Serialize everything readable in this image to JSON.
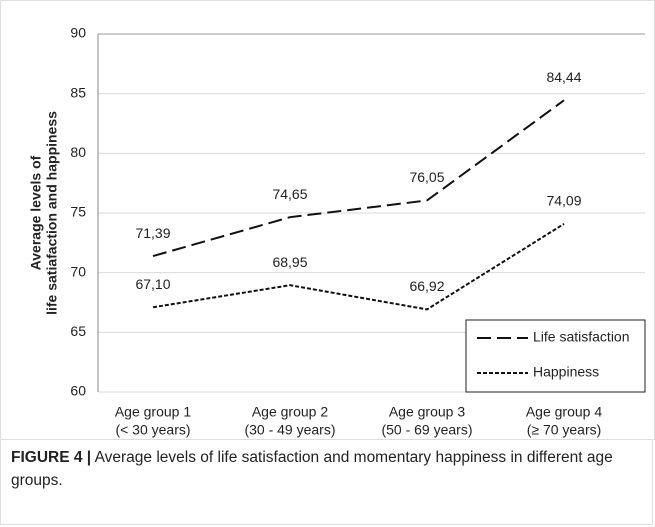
{
  "chart_data": {
    "type": "line",
    "y_label": [
      "Average levels of",
      "life satiafaction and happiness"
    ],
    "categories": [
      [
        "Age group 1",
        "(< 30 years)"
      ],
      [
        "Age group 2",
        "(30 - 49 years)"
      ],
      [
        "Age group 3",
        "(50 - 69 years)"
      ],
      [
        "Age group 4",
        "(≥ 70 years)"
      ]
    ],
    "series": [
      {
        "name": "Life satisfaction",
        "color": "#111111",
        "dash": "14 6",
        "values": [
          71.39,
          74.65,
          76.05,
          84.44
        ],
        "value_labels": [
          "71,39",
          "74,65",
          "76,05",
          "84,44"
        ]
      },
      {
        "name": "Happiness",
        "color": "#111111",
        "dash": "4 2",
        "values": [
          67.1,
          68.95,
          66.92,
          74.09
        ],
        "value_labels": [
          "67,10",
          "68,95",
          "66,92",
          "74,09"
        ]
      }
    ],
    "ylim": [
      60,
      90
    ],
    "yticks": [
      60,
      65,
      70,
      75,
      80,
      85,
      90
    ],
    "grid": true,
    "legend": "lower right"
  },
  "caption": {
    "label": "FIGURE 4 |",
    "text": "Average levels of life satisfaction and momentary happiness in different age groups."
  }
}
